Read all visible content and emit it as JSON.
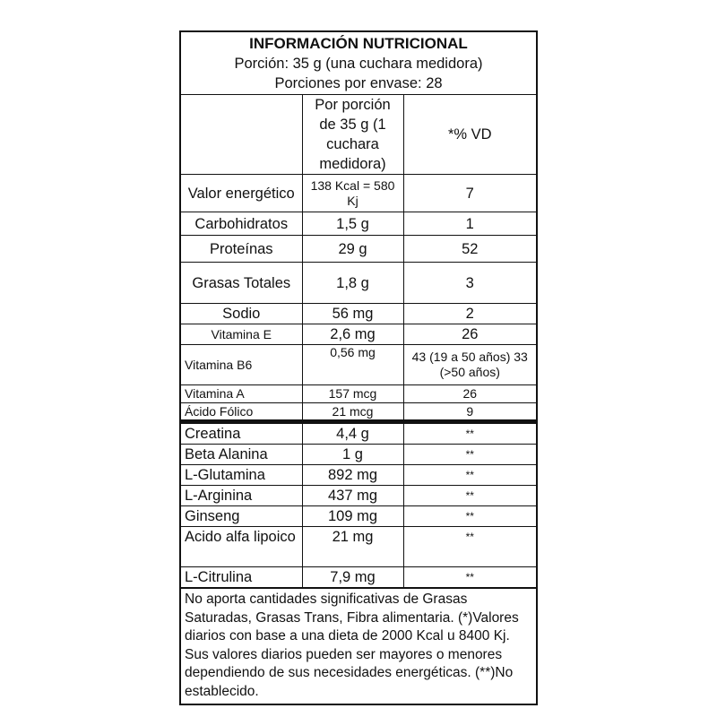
{
  "header": {
    "title": "INFORMACIÓN NUTRICIONAL",
    "serving": "Porción: 35 g (una cuchara medidora)",
    "servings_per_container": "Porciones por envase: 28"
  },
  "columns": {
    "name": "",
    "per_serving": "Por porción de 35 g (1 cuchara medidora)",
    "dv": "*% VD"
  },
  "rows": [
    {
      "name": "Valor energético",
      "amount": "138 Kcal = 580 Kj",
      "dv": "7"
    },
    {
      "name": "Carbohidratos",
      "amount": "1,5 g",
      "dv": "1"
    },
    {
      "name": "Proteínas",
      "amount": "29 g",
      "dv": "52"
    },
    {
      "name": "Grasas Totales",
      "amount": "1,8 g",
      "dv": "3"
    },
    {
      "name": "Sodio",
      "amount": "56 mg",
      "dv": "2"
    },
    {
      "name": "Vitamina E",
      "amount": "2,6 mg",
      "dv": "26"
    },
    {
      "name": "Vitamina B6",
      "amount": "0,56 mg",
      "dv": "43 (19 a 50 años) 33 (>50 años)"
    },
    {
      "name": "Vitamina A",
      "amount": "157 mcg",
      "dv": "26"
    },
    {
      "name": "Ácido Fólico",
      "amount": "21 mcg",
      "dv": "9"
    },
    {
      "name": "Creatina",
      "amount": "4,4 g",
      "dv": "**"
    },
    {
      "name": "Beta Alanina",
      "amount": "1 g",
      "dv": "**"
    },
    {
      "name": "L-Glutamina",
      "amount": "892 mg",
      "dv": "**"
    },
    {
      "name": "L-Arginina",
      "amount": "437 mg",
      "dv": "**"
    },
    {
      "name": "Ginseng",
      "amount": "109 mg",
      "dv": "**"
    },
    {
      "name": "Acido alfa lipoico",
      "amount": "21 mg",
      "dv": "**"
    },
    {
      "name": "L-Citrulina",
      "amount": "7,9 mg",
      "dv": "**"
    }
  ],
  "footnote": "No aporta cantidades significativas de Grasas Saturadas, Grasas Trans, Fibra alimentaria. (*)Valores diarios con base a una dieta de 2000 Kcal u 8400 Kj. Sus valores diarios pueden ser mayores o menores dependiendo de sus necesidades energéticas. (**)No establecido."
}
